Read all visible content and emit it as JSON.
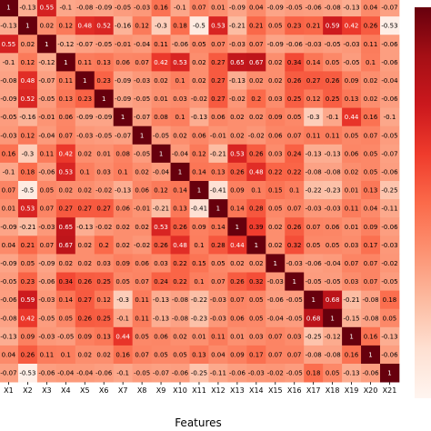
{
  "chart_data": {
    "type": "heatmap",
    "title": "",
    "xlabel": "Features",
    "ylabel": "",
    "x_tick_labels": [
      "X1",
      "X2",
      "X3",
      "X4",
      "X5",
      "X6",
      "X7",
      "X8",
      "X9",
      "X10",
      "X11",
      "X12",
      "X13",
      "X14",
      "X15",
      "X16",
      "X17",
      "X18",
      "X19",
      "X20",
      "X21"
    ],
    "y_tick_labels": [],
    "color_scale": "Reds",
    "vmin": -0.6,
    "vmax": 1,
    "colorbar_tick_labels": [],
    "values": [
      [
        1,
        -0.13,
        0.55,
        -0.1,
        -0.08,
        -0.09,
        -0.05,
        -0.03,
        0.16,
        -0.1,
        0.07,
        0.01,
        -0.09,
        0.04,
        -0.09,
        -0.05,
        -0.06,
        -0.08,
        -0.13,
        0.04,
        -0.07
      ],
      [
        -0.13,
        1,
        0.02,
        0.12,
        0.48,
        0.52,
        -0.16,
        0.12,
        -0.3,
        0.18,
        -0.5,
        0.53,
        -0.21,
        0.21,
        0.05,
        0.23,
        0.21,
        0.59,
        0.42,
        0.26,
        -0.53
      ],
      [
        0.55,
        0.02,
        1,
        -0.12,
        -0.07,
        -0.05,
        -0.01,
        -0.04,
        0.11,
        -0.06,
        0.05,
        0.07,
        -0.03,
        0.07,
        -0.09,
        -0.06,
        -0.03,
        -0.05,
        -0.03,
        0.11,
        -0.06
      ],
      [
        -0.1,
        0.12,
        -0.12,
        1,
        0.11,
        0.13,
        0.06,
        0.07,
        0.42,
        0.53,
        0.02,
        0.27,
        0.65,
        0.67,
        0.02,
        0.34,
        0.14,
        0.05,
        -0.05,
        0.1,
        -0.06
      ],
      [
        -0.08,
        0.48,
        -0.07,
        0.11,
        1,
        0.23,
        -0.09,
        -0.03,
        0.02,
        0.1,
        0.02,
        0.27,
        -0.13,
        0.02,
        0.02,
        0.26,
        0.27,
        0.26,
        0.09,
        0.02,
        -0.04
      ],
      [
        -0.09,
        0.52,
        -0.05,
        0.13,
        0.23,
        1,
        -0.09,
        -0.05,
        0.01,
        0.03,
        -0.02,
        0.27,
        -0.02,
        0.2,
        0.03,
        0.25,
        0.12,
        0.25,
        0.13,
        0.02,
        -0.06
      ],
      [
        -0.05,
        -0.16,
        -0.01,
        0.06,
        -0.09,
        -0.09,
        1,
        -0.07,
        0.08,
        0.1,
        -0.13,
        0.06,
        0.02,
        0.02,
        0.09,
        0.05,
        -0.3,
        -0.1,
        0.44,
        0.16,
        -0.1
      ],
      [
        -0.03,
        0.12,
        -0.04,
        0.07,
        -0.03,
        -0.05,
        -0.07,
        1,
        -0.05,
        0.02,
        0.06,
        -0.01,
        0.02,
        -0.02,
        0.06,
        0.07,
        0.11,
        0.11,
        0.05,
        0.07,
        -0.05
      ],
      [
        0.16,
        -0.3,
        0.11,
        0.42,
        0.02,
        0.01,
        0.08,
        -0.05,
        1,
        -0.04,
        0.12,
        -0.21,
        0.53,
        0.26,
        0.03,
        0.24,
        -0.13,
        -0.13,
        0.06,
        0.05,
        -0.07
      ],
      [
        -0.1,
        0.18,
        -0.06,
        0.53,
        0.1,
        0.03,
        0.1,
        0.02,
        -0.04,
        1,
        0.14,
        0.13,
        0.26,
        0.48,
        0.22,
        0.22,
        -0.08,
        -0.08,
        0.02,
        0.05,
        -0.06
      ],
      [
        0.07,
        -0.5,
        0.05,
        0.02,
        0.02,
        -0.02,
        -0.13,
        0.06,
        0.12,
        0.14,
        1,
        -0.41,
        0.09,
        0.1,
        0.15,
        0.1,
        -0.22,
        -0.23,
        0.01,
        0.13,
        -0.25
      ],
      [
        0.01,
        0.53,
        0.07,
        0.27,
        0.27,
        0.27,
        0.06,
        -0.01,
        -0.21,
        0.13,
        -0.41,
        1,
        0.14,
        0.28,
        0.05,
        0.07,
        -0.03,
        -0.03,
        0.11,
        0.04,
        -0.11
      ],
      [
        -0.09,
        -0.21,
        -0.03,
        0.65,
        -0.13,
        -0.02,
        0.02,
        0.02,
        0.53,
        0.26,
        0.09,
        0.14,
        1,
        0.39,
        0.02,
        0.26,
        0.07,
        0.06,
        0.01,
        0.09,
        -0.06
      ],
      [
        0.04,
        0.21,
        0.07,
        0.67,
        0.02,
        0.2,
        0.02,
        -0.02,
        0.26,
        0.48,
        0.1,
        0.28,
        0.44,
        1,
        0.02,
        0.32,
        0.05,
        0.05,
        0.03,
        0.17,
        -0.03
      ],
      [
        -0.09,
        0.05,
        -0.09,
        0.02,
        0.02,
        0.03,
        0.09,
        0.06,
        0.03,
        0.22,
        0.15,
        0.05,
        0.02,
        0.02,
        1,
        -0.03,
        -0.06,
        -0.04,
        0.07,
        0.07,
        -0.02
      ],
      [
        -0.05,
        0.23,
        -0.06,
        0.34,
        0.26,
        0.25,
        0.05,
        0.07,
        0.24,
        0.22,
        0.1,
        0.07,
        0.26,
        0.32,
        -0.03,
        1,
        -0.05,
        -0.05,
        0.03,
        0.07,
        -0.05
      ],
      [
        -0.06,
        0.59,
        -0.03,
        0.14,
        0.27,
        0.12,
        -0.3,
        0.11,
        -0.13,
        -0.08,
        -0.22,
        -0.03,
        0.07,
        0.05,
        -0.06,
        -0.05,
        1,
        0.68,
        -0.21,
        -0.08,
        0.18
      ],
      [
        -0.08,
        0.42,
        -0.05,
        0.05,
        0.26,
        0.25,
        -0.1,
        0.11,
        -0.13,
        -0.08,
        -0.23,
        -0.03,
        0.06,
        0.05,
        -0.04,
        -0.05,
        0.68,
        1,
        -0.15,
        -0.08,
        0.05
      ],
      [
        -0.13,
        0.09,
        -0.03,
        -0.05,
        0.09,
        0.13,
        0.44,
        0.05,
        0.06,
        0.02,
        0.01,
        0.11,
        0.01,
        0.03,
        0.07,
        0.03,
        -0.25,
        -0.12,
        1,
        0.16,
        -0.13
      ],
      [
        0.04,
        0.26,
        0.11,
        0.1,
        0.02,
        0.02,
        0.16,
        0.07,
        0.05,
        0.05,
        0.13,
        0.04,
        0.09,
        0.17,
        0.07,
        0.07,
        -0.08,
        -0.08,
        0.16,
        1,
        -0.06
      ],
      [
        -0.07,
        -0.53,
        -0.06,
        -0.04,
        -0.04,
        -0.06,
        -0.1,
        -0.05,
        -0.07,
        -0.06,
        -0.25,
        -0.11,
        -0.06,
        -0.03,
        -0.02,
        -0.05,
        0.18,
        0.05,
        -0.13,
        -0.06,
        1
      ]
    ]
  }
}
